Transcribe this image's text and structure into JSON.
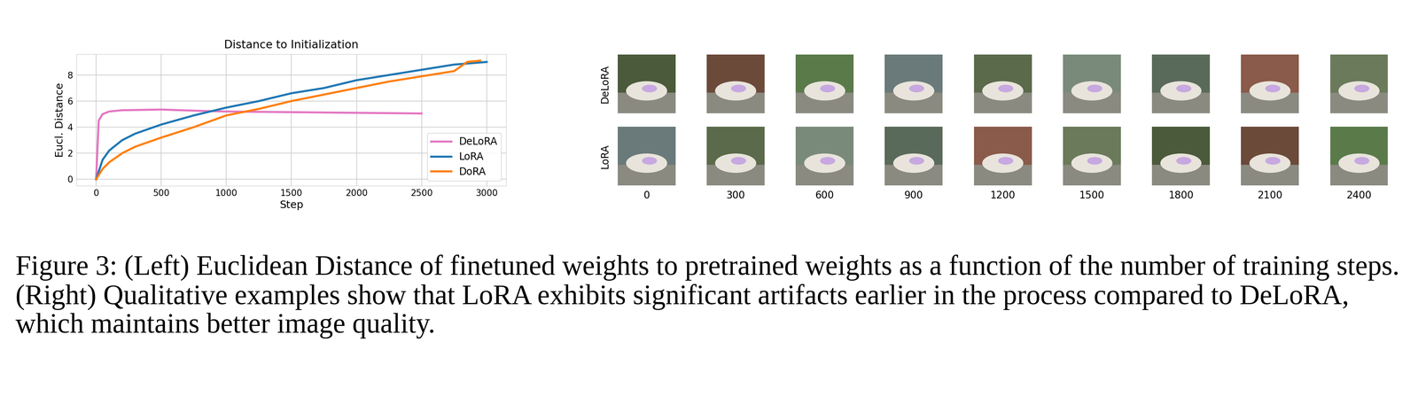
{
  "chart_data": {
    "type": "line",
    "title": "Distance to Initialization",
    "x_label": "Step",
    "y_label": "Eucl. Distance",
    "series": [
      {
        "name": "DeLoRA",
        "color": "#e377c2",
        "line_style": "solid",
        "x": [
          0,
          20,
          50,
          100,
          200,
          500,
          800,
          1000,
          1500,
          2000,
          2500
        ],
        "values": [
          0,
          4.5,
          5.0,
          5.2,
          5.3,
          5.35,
          5.25,
          5.2,
          5.15,
          5.1,
          5.05
        ]
      },
      {
        "name": "LoRA",
        "color": "#1f77b4",
        "line_style": "solid",
        "x": [
          0,
          50,
          100,
          200,
          300,
          500,
          750,
          1000,
          1250,
          1500,
          1750,
          2000,
          2250,
          2500,
          2750,
          3000
        ],
        "values": [
          0,
          1.5,
          2.2,
          3.0,
          3.5,
          4.2,
          4.9,
          5.5,
          6.0,
          6.6,
          7.0,
          7.6,
          8.0,
          8.4,
          8.8,
          9.0
        ]
      },
      {
        "name": "DoRA",
        "color": "#ff7f0e",
        "line_style": "solid",
        "x": [
          0,
          50,
          100,
          200,
          300,
          500,
          750,
          1000,
          1250,
          1500,
          1750,
          2000,
          2250,
          2500,
          2750,
          2850,
          2950
        ],
        "values": [
          0,
          0.8,
          1.3,
          2.0,
          2.5,
          3.2,
          4.0,
          4.9,
          5.4,
          6.0,
          6.5,
          7.0,
          7.5,
          7.9,
          8.3,
          9.0,
          9.1
        ]
      }
    ],
    "xlim": [
      -150,
      3150
    ],
    "xticks": [
      0,
      500,
      1000,
      1500,
      2000,
      2500,
      3000
    ],
    "ylim": [
      -0.5,
      9.6
    ],
    "yticks": [
      0,
      2,
      4,
      6,
      8
    ],
    "grid": true,
    "legend": "lower right"
  },
  "image_grid": {
    "rows": [
      "DeLoRA",
      "LoRA"
    ],
    "steps": [
      "0",
      "300",
      "600",
      "900",
      "1200",
      "1500",
      "1800",
      "2100",
      "2400"
    ]
  },
  "caption": "Figure 3: (Left) Euclidean Distance of finetuned weights to pretrained weights as a function of the number of training steps. (Right) Qualitative examples show that LoRA exhibits significant artifacts earlier in the process compared to DeLoRA, which maintains better image quality."
}
